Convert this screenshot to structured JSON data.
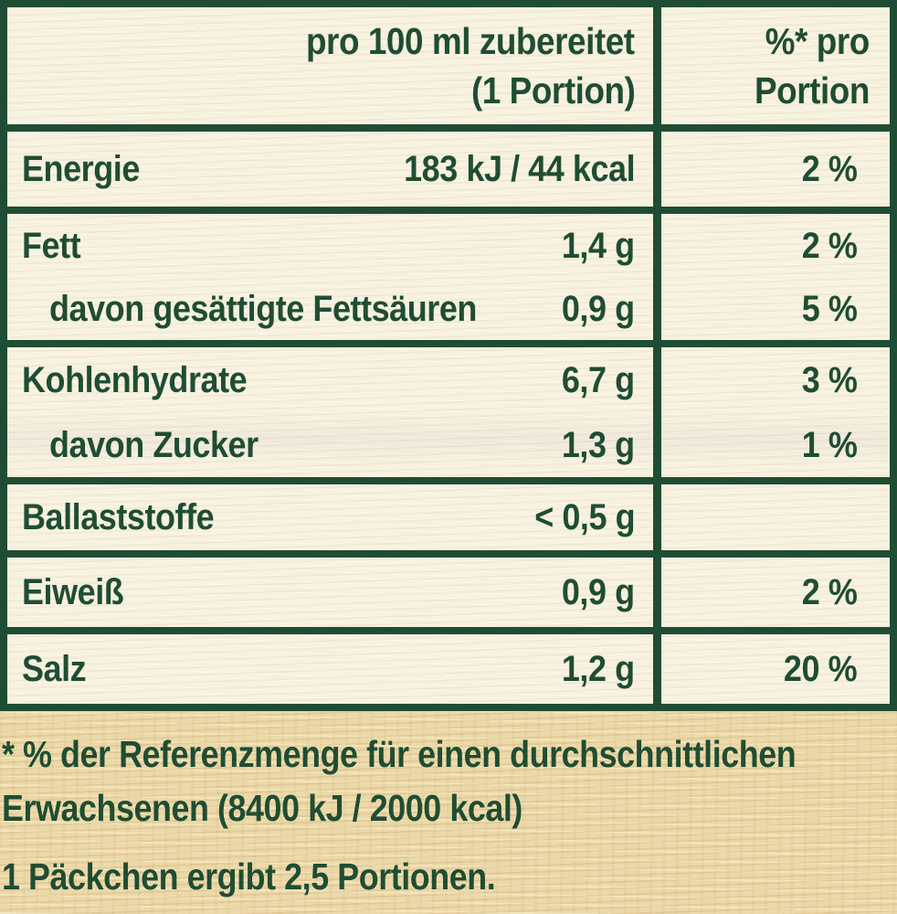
{
  "colors": {
    "text_green": "#1f4d33",
    "border_green": "#1f4d33",
    "table_background": "#f7f1df",
    "outer_background": "#ecd9a9"
  },
  "table": {
    "header": {
      "col1_line1": "pro 100 ml zubereitet",
      "col1_line2": "(1 Portion)",
      "col2_line1": "%* pro",
      "col2_line2": "Portion"
    },
    "rows": [
      {
        "label": "Energie",
        "value": "183 kJ / 44 kcal",
        "percent": "2 %"
      },
      {
        "label": "Fett",
        "value": "1,4 g",
        "percent": "2 %"
      },
      {
        "label": "davon gesättigte Fettsäuren",
        "value": "0,9 g",
        "percent": "5 %"
      },
      {
        "label": "Kohlenhydrate",
        "value": "6,7 g",
        "percent": "3 %"
      },
      {
        "label": "davon Zucker",
        "value": "1,3 g",
        "percent": "1 %"
      },
      {
        "label": "Ballaststoffe",
        "value": "< 0,5 g",
        "percent": ""
      },
      {
        "label": "Eiweiß",
        "value": "0,9 g",
        "percent": "2 %"
      },
      {
        "label": "Salz",
        "value": "1,2 g",
        "percent": "20 %"
      }
    ]
  },
  "footnote": {
    "line1": "* %  der Referenzmenge für einen durchschnittlichen",
    "line2": "Erwachsenen (8400 kJ / 2000 kcal)",
    "line3": "1 Päckchen ergibt 2,5 Portionen."
  }
}
